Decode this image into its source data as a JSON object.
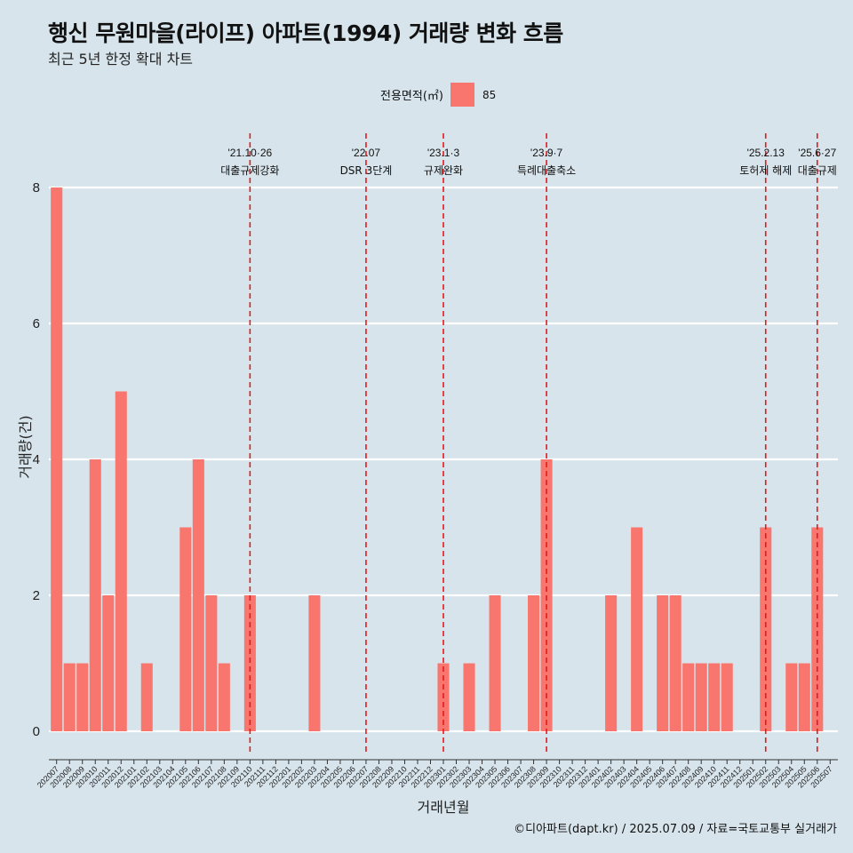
{
  "title": "행신 무원마을(라이프) 아파트(1994) 거래량 변화 흐름",
  "subtitle": "최근 5년 한정 확대 차트",
  "legend": {
    "title": "전용면적(㎡)",
    "key": "85",
    "color": "#f8766d"
  },
  "caption": "©디아파트(dapt.kr) / 2025.07.09 / 자료=국토교통부 실거래가",
  "chart_data": {
    "type": "bar",
    "xlabel": "거래년월",
    "ylabel": "거래량(건)",
    "ylim": [
      0,
      8
    ],
    "yticks": [
      0,
      2,
      4,
      6,
      8
    ],
    "grid": "horizontal",
    "legend_position": "top",
    "categories": [
      "202007",
      "202008",
      "202009",
      "202010",
      "202011",
      "202012",
      "202101",
      "202102",
      "202103",
      "202104",
      "202105",
      "202106",
      "202107",
      "202108",
      "202109",
      "202110",
      "202111",
      "202112",
      "202201",
      "202202",
      "202203",
      "202204",
      "202205",
      "202206",
      "202207",
      "202208",
      "202209",
      "202210",
      "202211",
      "202212",
      "202301",
      "202302",
      "202303",
      "202304",
      "202305",
      "202306",
      "202307",
      "202308",
      "202309",
      "202310",
      "202311",
      "202312",
      "202401",
      "202402",
      "202403",
      "202404",
      "202405",
      "202406",
      "202407",
      "202408",
      "202409",
      "202410",
      "202411",
      "202412",
      "202501",
      "202502",
      "202503",
      "202504",
      "202505",
      "202506",
      "202507"
    ],
    "series": [
      {
        "name": "85",
        "values": [
          8,
          1,
          1,
          4,
          2,
          5,
          0,
          1,
          0,
          0,
          3,
          4,
          2,
          1,
          0,
          2,
          0,
          0,
          0,
          0,
          2,
          0,
          0,
          0,
          0,
          0,
          0,
          0,
          0,
          0,
          1,
          0,
          1,
          0,
          2,
          0,
          0,
          2,
          4,
          0,
          0,
          0,
          0,
          2,
          0,
          3,
          0,
          2,
          2,
          1,
          1,
          1,
          1,
          0,
          0,
          3,
          0,
          1,
          1,
          3,
          0
        ]
      }
    ],
    "annotations": [
      {
        "at": "202110",
        "date": "'21.10·26",
        "label": "대출규제강화"
      },
      {
        "at": "202207",
        "date": "'22.07",
        "label": "DSR 3단계"
      },
      {
        "at": "202301",
        "date": "'23.1·3",
        "label": "규제완화"
      },
      {
        "at": "202309",
        "date": "'23.9·7",
        "label": "특례대출축소"
      },
      {
        "at": "202502",
        "date": "'25.2.13",
        "label": "토허제 해제"
      },
      {
        "at": "202506",
        "date": "'25.6·27",
        "label": "대출규제"
      }
    ]
  }
}
